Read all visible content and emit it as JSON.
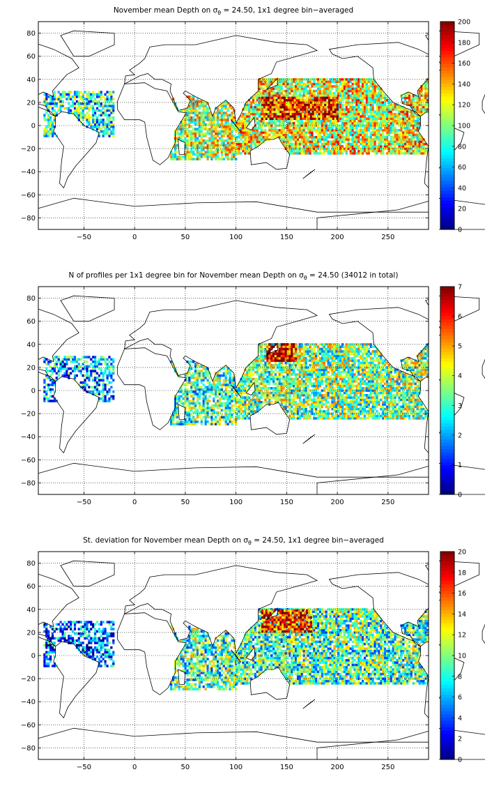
{
  "chart_data": [
    {
      "type": "heatmap",
      "title": "November mean Depth on σ_θ = 24.50, 1x1 degree bin−averaged",
      "title_parts": {
        "before": "November mean Depth on σ",
        "subscript": "θ",
        "after": " = 24.50, 1x1 degree bin−averaged"
      },
      "x_ticks": [
        "−50",
        "0",
        "50",
        "100",
        "150",
        "200",
        "250"
      ],
      "y_ticks": [
        "80",
        "60",
        "40",
        "20",
        "0",
        "−20",
        "−40",
        "−60",
        "−80"
      ],
      "xlim": [
        -95,
        290
      ],
      "ylim": [
        -90,
        90
      ],
      "colorbar": {
        "min": 0,
        "max": 200,
        "ticks": [
          "200",
          "180",
          "160",
          "140",
          "120",
          "100",
          "80",
          "60",
          "40",
          "20",
          "0"
        ]
      },
      "grid": true,
      "colormap": "jet",
      "regions": [
        {
          "lon": [
            -90,
            -20
          ],
          "lat": [
            -10,
            30
          ],
          "level": 0.4,
          "density": 0.7
        },
        {
          "lon": [
            35,
            100
          ],
          "lat": [
            -30,
            25
          ],
          "level": 0.55,
          "density": 0.85
        },
        {
          "lon": [
            100,
            290
          ],
          "lat": [
            -25,
            40
          ],
          "level": 0.6,
          "density": 0.9
        },
        {
          "lon": [
            125,
            200
          ],
          "lat": [
            5,
            25
          ],
          "level": 0.85,
          "density": 0.9
        }
      ]
    },
    {
      "type": "heatmap",
      "title": "N of profiles per 1x1 degree bin for November mean Depth on σ_θ = 24.50 (34012 in total)",
      "title_parts": {
        "before": "N of profiles per 1x1 degree bin for November mean Depth on σ",
        "subscript": "θ",
        "after": " = 24.50 (34012 in total)"
      },
      "x_ticks": [
        "−50",
        "0",
        "50",
        "100",
        "150",
        "200",
        "250"
      ],
      "y_ticks": [
        "80",
        "60",
        "40",
        "20",
        "0",
        "−20",
        "−40",
        "−60",
        "−80"
      ],
      "xlim": [
        -95,
        290
      ],
      "ylim": [
        -90,
        90
      ],
      "colorbar": {
        "min": 0,
        "max": 7,
        "ticks": [
          "7",
          "6",
          "5",
          "4",
          "3",
          "2",
          "1",
          "0"
        ]
      },
      "grid": true,
      "colormap": "jet",
      "regions": [
        {
          "lon": [
            -90,
            -20
          ],
          "lat": [
            -10,
            30
          ],
          "level": 0.3,
          "density": 0.6
        },
        {
          "lon": [
            35,
            100
          ],
          "lat": [
            -30,
            25
          ],
          "level": 0.45,
          "density": 0.75
        },
        {
          "lon": [
            100,
            290
          ],
          "lat": [
            -25,
            40
          ],
          "level": 0.5,
          "density": 0.85
        },
        {
          "lon": [
            130,
            160
          ],
          "lat": [
            25,
            40
          ],
          "level": 0.9,
          "density": 0.9
        }
      ]
    },
    {
      "type": "heatmap",
      "title": "St. deviation for November mean Depth on σ_θ = 24.50, 1x1 degree bin−averaged",
      "title_parts": {
        "before": "St. deviation for November mean Depth on σ",
        "subscript": "θ",
        "after": " = 24.50, 1x1 degree bin−averaged"
      },
      "x_ticks": [
        "−50",
        "0",
        "50",
        "100",
        "150",
        "200",
        "250"
      ],
      "y_ticks": [
        "80",
        "60",
        "40",
        "20",
        "0",
        "−20",
        "−40",
        "−60",
        "−80"
      ],
      "xlim": [
        -95,
        290
      ],
      "ylim": [
        -90,
        90
      ],
      "colorbar": {
        "min": 0,
        "max": 20,
        "ticks": [
          "20",
          "18",
          "16",
          "14",
          "12",
          "10",
          "8",
          "6",
          "4",
          "2",
          "0"
        ]
      },
      "grid": true,
      "colormap": "jet",
      "regions": [
        {
          "lon": [
            -90,
            -20
          ],
          "lat": [
            -10,
            30
          ],
          "level": 0.25,
          "density": 0.6
        },
        {
          "lon": [
            35,
            100
          ],
          "lat": [
            -30,
            25
          ],
          "level": 0.45,
          "density": 0.75
        },
        {
          "lon": [
            100,
            290
          ],
          "lat": [
            -25,
            40
          ],
          "level": 0.45,
          "density": 0.85
        },
        {
          "lon": [
            125,
            175
          ],
          "lat": [
            20,
            40
          ],
          "level": 0.85,
          "density": 0.85
        }
      ]
    }
  ]
}
